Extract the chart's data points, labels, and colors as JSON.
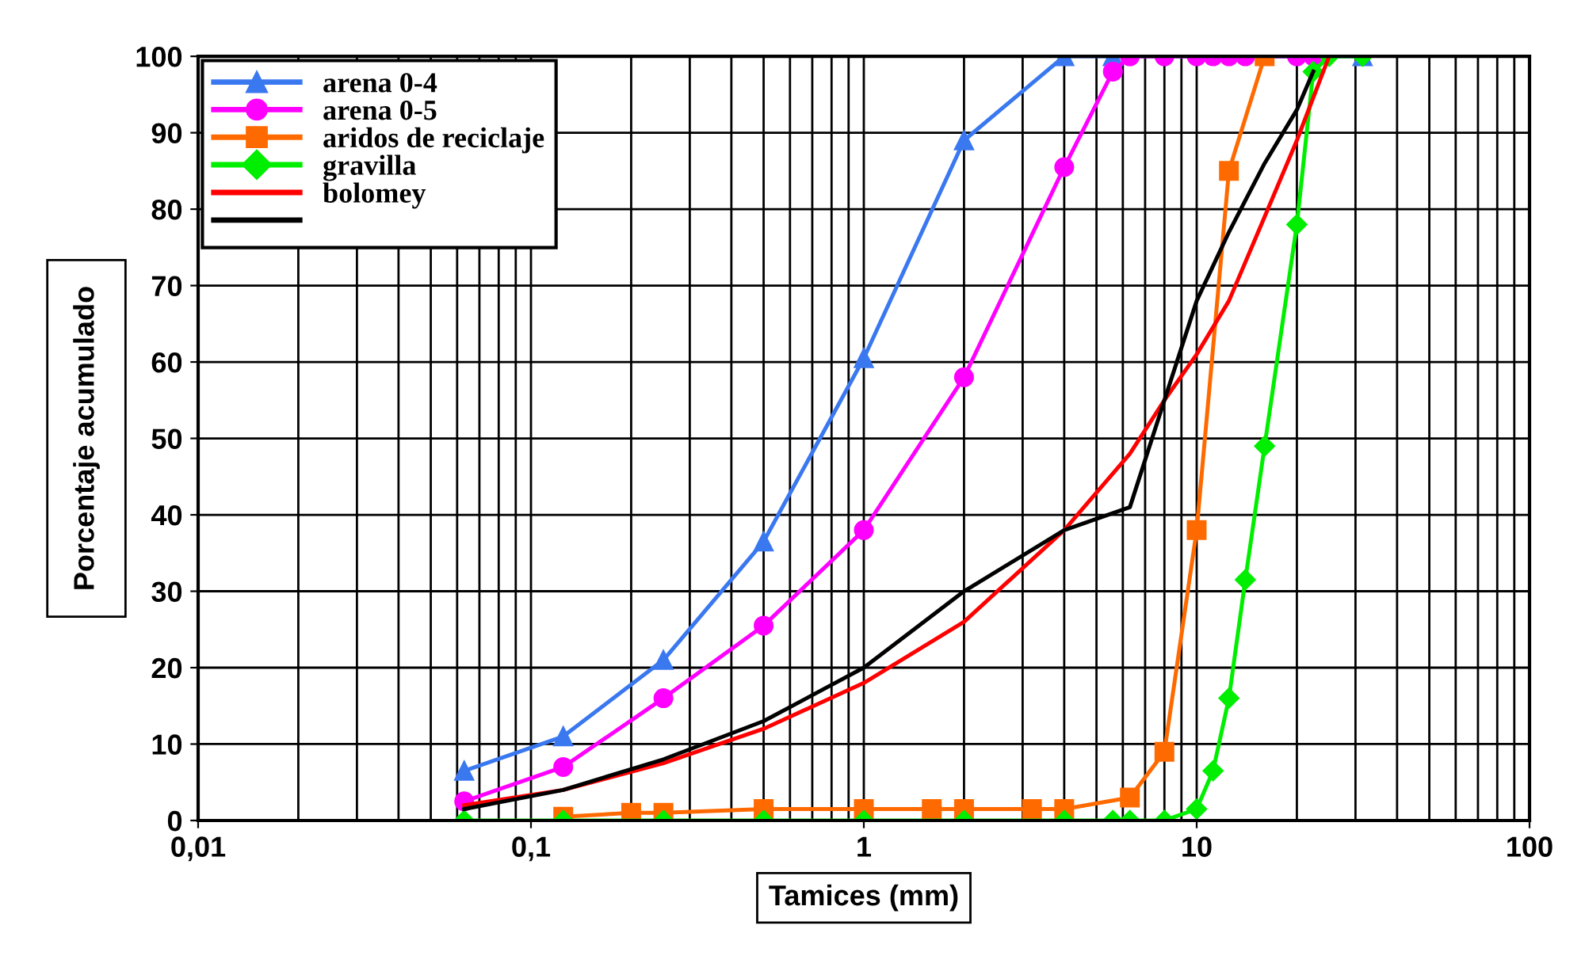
{
  "chart_data": {
    "type": "line",
    "xlabel": "Tamices (mm)",
    "ylabel": "Porcentaje acumulado",
    "log": "x",
    "grid": true,
    "legend": "top left",
    "line_style": "solid",
    "xlim": [
      0.01,
      100
    ],
    "xticks": [
      {
        "value": 0.01,
        "label": "0,01"
      },
      {
        "value": 0.1,
        "label": "0,1"
      },
      1,
      10,
      100
    ],
    "ylim": [
      0,
      100
    ],
    "yticks": [
      0,
      10,
      20,
      30,
      40,
      50,
      60,
      70,
      80,
      90,
      100
    ],
    "series": [
      {
        "name": "arena 0-4",
        "color": "#3a78f0",
        "marker": "triangle",
        "x": [
          0.063,
          0.125,
          0.25,
          0.5,
          1,
          2,
          4,
          5.6,
          31.5
        ],
        "values": [
          6.5,
          11,
          21,
          36.5,
          60.5,
          89,
          100,
          100,
          100
        ]
      },
      {
        "name": "arena 0-5",
        "color": "#ff00ff",
        "marker": "circle",
        "x": [
          0.063,
          0.125,
          0.25,
          0.5,
          1,
          2,
          4,
          5.6,
          6.3,
          8,
          10,
          11.2,
          12.5,
          14,
          16,
          20,
          22.4
        ],
        "values": [
          2.5,
          7,
          16,
          25.5,
          38,
          58,
          85.5,
          98,
          100,
          100,
          100,
          100,
          100,
          100,
          null,
          100,
          100
        ]
      },
      {
        "name": "aridos de reciclaje",
        "color": "#ff6a00",
        "marker": "square",
        "x": [
          0.125,
          0.2,
          0.25,
          0.5,
          1,
          1.6,
          2,
          3.2,
          4,
          6.3,
          8,
          10,
          12.5,
          16
        ],
        "values": [
          0.5,
          1,
          1,
          1.5,
          1.5,
          1.5,
          1.5,
          1.5,
          1.5,
          3,
          9,
          38,
          85,
          100
        ]
      },
      {
        "name": "gravilla",
        "color": "#00ee00",
        "marker": "diamond",
        "x": [
          0.063,
          0.125,
          0.25,
          0.5,
          1,
          2,
          4,
          5.6,
          6.3,
          8,
          10,
          11.2,
          12.5,
          14,
          16,
          20,
          22.4,
          25,
          31.5
        ],
        "values": [
          0,
          0,
          0,
          0,
          0,
          0,
          0,
          0,
          0,
          0,
          1.5,
          6.5,
          16,
          31.5,
          49,
          78,
          98,
          100,
          100
        ]
      },
      {
        "name": "bolomey",
        "color": "#ff0000",
        "marker": "none",
        "x": [
          0.063,
          0.125,
          0.25,
          0.5,
          1,
          2,
          4,
          6.3,
          8,
          10,
          12.5,
          16,
          20,
          25
        ],
        "values": [
          2,
          4,
          7.5,
          12,
          18,
          26,
          38,
          48,
          55,
          61,
          68,
          79,
          89,
          100
        ]
      },
      {
        "color": "#000000",
        "marker": "none",
        "x": [
          0.063,
          0.125,
          0.25,
          0.5,
          1,
          2,
          4,
          6.3,
          8,
          10,
          12.5,
          16,
          20,
          22.4
        ],
        "values": [
          1.5,
          4,
          8,
          13,
          20,
          30,
          38,
          41,
          55,
          68,
          77,
          86,
          93,
          98
        ]
      }
    ]
  }
}
